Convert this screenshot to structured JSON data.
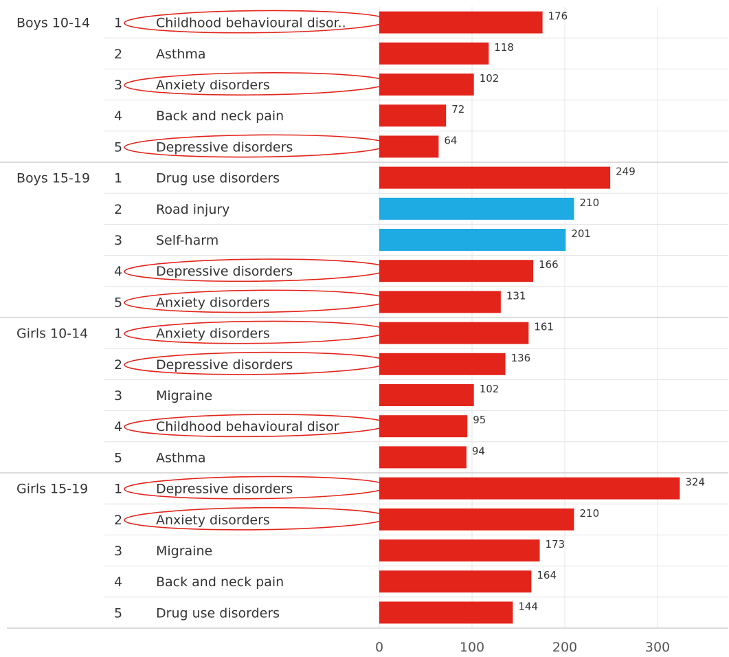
{
  "chart_data": {
    "type": "bar",
    "orientation": "horizontal",
    "groups": [
      {
        "name": "Boys 10-14",
        "rows": [
          {
            "rank": "1",
            "label": "Childhood behavioural disor..",
            "value": 176,
            "color": "#e3241b",
            "circled": true
          },
          {
            "rank": "2",
            "label": "Asthma",
            "value": 118,
            "color": "#e3241b",
            "circled": false
          },
          {
            "rank": "3",
            "label": "Anxiety disorders",
            "value": 102,
            "color": "#e3241b",
            "circled": true
          },
          {
            "rank": "4",
            "label": "Back and neck pain",
            "value": 72,
            "color": "#e3241b",
            "circled": false
          },
          {
            "rank": "5",
            "label": "Depressive disorders",
            "value": 64,
            "color": "#e3241b",
            "circled": true
          }
        ]
      },
      {
        "name": "Boys 15-19",
        "rows": [
          {
            "rank": "1",
            "label": "Drug use disorders",
            "value": 249,
            "color": "#e3241b",
            "circled": false
          },
          {
            "rank": "2",
            "label": "Road injury",
            "value": 210,
            "color": "#1eaae2",
            "circled": false
          },
          {
            "rank": "3",
            "label": "Self-harm",
            "value": 201,
            "color": "#1eaae2",
            "circled": false
          },
          {
            "rank": "4",
            "label": "Depressive disorders",
            "value": 166,
            "color": "#e3241b",
            "circled": true
          },
          {
            "rank": "5",
            "label": "Anxiety disorders",
            "value": 131,
            "color": "#e3241b",
            "circled": true
          }
        ]
      },
      {
        "name": "Girls 10-14",
        "rows": [
          {
            "rank": "1",
            "label": "Anxiety disorders",
            "value": 161,
            "color": "#e3241b",
            "circled": true
          },
          {
            "rank": "2",
            "label": "Depressive disorders",
            "value": 136,
            "color": "#e3241b",
            "circled": true
          },
          {
            "rank": "3",
            "label": "Migraine",
            "value": 102,
            "color": "#e3241b",
            "circled": false
          },
          {
            "rank": "4",
            "label": "Childhood behavioural disor",
            "value": 95,
            "color": "#e3241b",
            "circled": true
          },
          {
            "rank": "5",
            "label": "Asthma",
            "value": 94,
            "color": "#e3241b",
            "circled": false
          }
        ]
      },
      {
        "name": "Girls 15-19",
        "rows": [
          {
            "rank": "1",
            "label": "Depressive disorders",
            "value": 324,
            "color": "#e3241b",
            "circled": true
          },
          {
            "rank": "2",
            "label": "Anxiety disorders",
            "value": 210,
            "color": "#e3241b",
            "circled": true
          },
          {
            "rank": "3",
            "label": "Migraine",
            "value": 173,
            "color": "#e3241b",
            "circled": false
          },
          {
            "rank": "4",
            "label": "Back and neck pain",
            "value": 164,
            "color": "#e3241b",
            "circled": false
          },
          {
            "rank": "5",
            "label": "Drug use disorders",
            "value": 144,
            "color": "#e3241b",
            "circled": false
          }
        ]
      }
    ],
    "x_ticks": [
      0,
      100,
      200,
      300
    ],
    "xlim": [
      0,
      370
    ],
    "grid": true,
    "highlight_color": "#e3241b"
  }
}
